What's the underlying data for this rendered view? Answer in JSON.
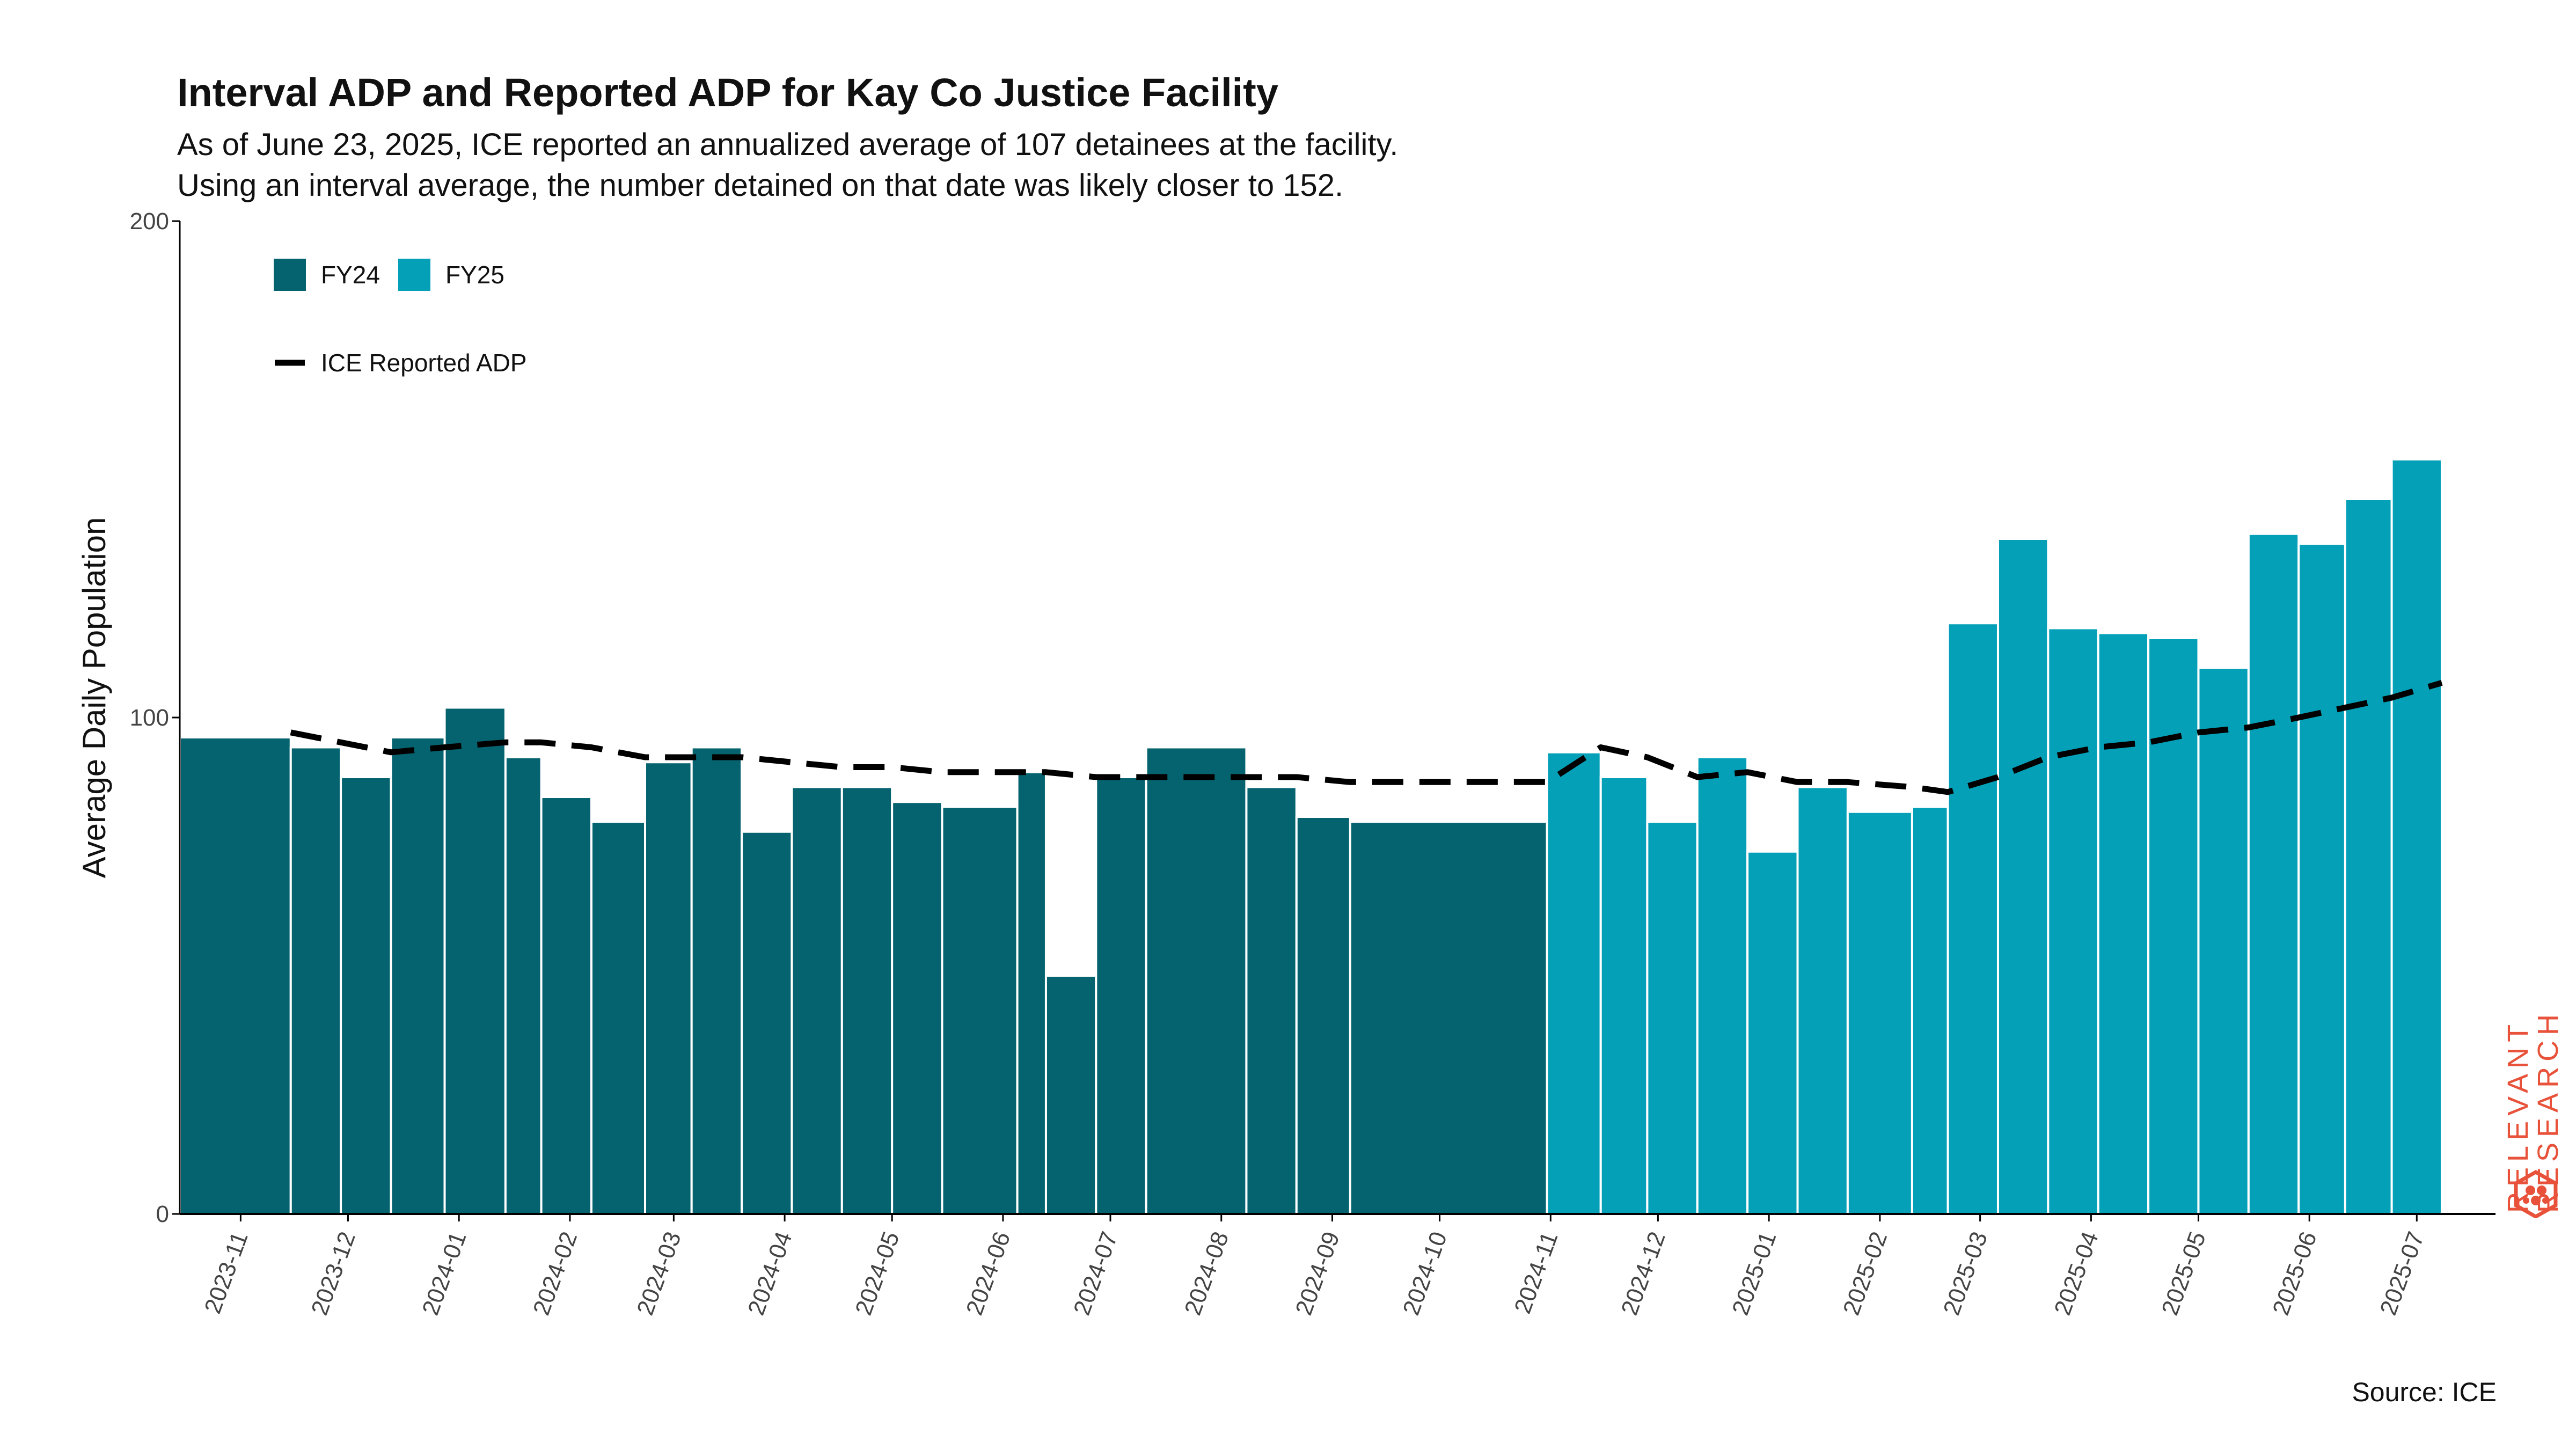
{
  "header": {
    "title": "Interval ADP and Reported ADP for Kay Co Justice Facility",
    "subtitle_line1": "As of June 23, 2025, ICE reported an annualized average of 107 detainees at the facility.",
    "subtitle_line2": "Using an interval average, the number detained on that date was likely closer to 152."
  },
  "footer": {
    "source": "Source: ICE"
  },
  "logo": {
    "line1": "RELEVANT",
    "line2": "RESEARCH",
    "icon": "hexagon-molecule-icon",
    "color": "#e8523a"
  },
  "colors": {
    "fy24": "#04636f",
    "fy25": "#03a0b7",
    "line": "#000000",
    "axis": "#000000",
    "tick_label": "#444444"
  },
  "chart_data": {
    "type": "bar",
    "ylabel": "Average Daily Population",
    "xlabel": "",
    "ylim": [
      0,
      200
    ],
    "yticks": [
      0,
      100,
      200
    ],
    "xlim": [
      "2023-10-15",
      "2025-07-23"
    ],
    "xticks": [
      "2023-11",
      "2023-12",
      "2024-01",
      "2024-02",
      "2024-03",
      "2024-04",
      "2024-05",
      "2024-06",
      "2024-07",
      "2024-08",
      "2024-09",
      "2024-10",
      "2024-11",
      "2024-12",
      "2025-01",
      "2025-02",
      "2025-03",
      "2025-04",
      "2025-05",
      "2025-06",
      "2025-07"
    ],
    "legend": {
      "position": "top-left",
      "entries": [
        {
          "label": "FY24",
          "kind": "bar",
          "series": "FY24"
        },
        {
          "label": "FY25",
          "kind": "bar",
          "series": "FY25"
        },
        {
          "label": "ICE Reported ADP",
          "kind": "dashed-line"
        }
      ]
    },
    "bars": [
      {
        "start": "2023-10-15",
        "end": "2023-11-15",
        "value": 96,
        "fy": "FY24"
      },
      {
        "start": "2023-11-15",
        "end": "2023-11-29",
        "value": 94,
        "fy": "FY24"
      },
      {
        "start": "2023-11-29",
        "end": "2023-12-13",
        "value": 88,
        "fy": "FY24"
      },
      {
        "start": "2023-12-13",
        "end": "2023-12-28",
        "value": 96,
        "fy": "FY24"
      },
      {
        "start": "2023-12-28",
        "end": "2024-01-14",
        "value": 102,
        "fy": "FY24"
      },
      {
        "start": "2024-01-14",
        "end": "2024-01-24",
        "value": 92,
        "fy": "FY24"
      },
      {
        "start": "2024-01-24",
        "end": "2024-02-07",
        "value": 84,
        "fy": "FY24"
      },
      {
        "start": "2024-02-07",
        "end": "2024-02-22",
        "value": 79,
        "fy": "FY24"
      },
      {
        "start": "2024-02-22",
        "end": "2024-03-06",
        "value": 91,
        "fy": "FY24"
      },
      {
        "start": "2024-03-06",
        "end": "2024-03-20",
        "value": 94,
        "fy": "FY24"
      },
      {
        "start": "2024-03-20",
        "end": "2024-04-03",
        "value": 77,
        "fy": "FY24"
      },
      {
        "start": "2024-04-03",
        "end": "2024-04-17",
        "value": 86,
        "fy": "FY24"
      },
      {
        "start": "2024-04-17",
        "end": "2024-05-01",
        "value": 86,
        "fy": "FY24"
      },
      {
        "start": "2024-05-01",
        "end": "2024-05-15",
        "value": 83,
        "fy": "FY24"
      },
      {
        "start": "2024-05-15",
        "end": "2024-06-05",
        "value": 82,
        "fy": "FY24"
      },
      {
        "start": "2024-06-05",
        "end": "2024-06-13",
        "value": 89,
        "fy": "FY24"
      },
      {
        "start": "2024-06-13",
        "end": "2024-06-27",
        "value": 48,
        "fy": "FY24"
      },
      {
        "start": "2024-06-27",
        "end": "2024-07-11",
        "value": 88,
        "fy": "FY24"
      },
      {
        "start": "2024-07-11",
        "end": "2024-08-08",
        "value": 94,
        "fy": "FY24"
      },
      {
        "start": "2024-08-08",
        "end": "2024-08-22",
        "value": 86,
        "fy": "FY24"
      },
      {
        "start": "2024-08-22",
        "end": "2024-09-06",
        "value": 80,
        "fy": "FY24"
      },
      {
        "start": "2024-09-06",
        "end": "2024-10-31",
        "value": 79,
        "fy": "FY24"
      },
      {
        "start": "2024-10-31",
        "end": "2024-11-15",
        "value": 93,
        "fy": "FY25"
      },
      {
        "start": "2024-11-15",
        "end": "2024-11-28",
        "value": 88,
        "fy": "FY25"
      },
      {
        "start": "2024-11-28",
        "end": "2024-12-12",
        "value": 79,
        "fy": "FY25"
      },
      {
        "start": "2024-12-12",
        "end": "2024-12-26",
        "value": 92,
        "fy": "FY25"
      },
      {
        "start": "2024-12-26",
        "end": "2025-01-09",
        "value": 73,
        "fy": "FY25"
      },
      {
        "start": "2025-01-09",
        "end": "2025-01-23",
        "value": 86,
        "fy": "FY25"
      },
      {
        "start": "2025-01-23",
        "end": "2025-02-10",
        "value": 81,
        "fy": "FY25"
      },
      {
        "start": "2025-02-10",
        "end": "2025-02-20",
        "value": 82,
        "fy": "FY25"
      },
      {
        "start": "2025-02-20",
        "end": "2025-03-06",
        "value": 119,
        "fy": "FY25"
      },
      {
        "start": "2025-03-06",
        "end": "2025-03-20",
        "value": 136,
        "fy": "FY25"
      },
      {
        "start": "2025-03-20",
        "end": "2025-04-03",
        "value": 118,
        "fy": "FY25"
      },
      {
        "start": "2025-04-03",
        "end": "2025-04-17",
        "value": 117,
        "fy": "FY25"
      },
      {
        "start": "2025-04-17",
        "end": "2025-05-01",
        "value": 116,
        "fy": "FY25"
      },
      {
        "start": "2025-05-01",
        "end": "2025-05-15",
        "value": 110,
        "fy": "FY25"
      },
      {
        "start": "2025-05-15",
        "end": "2025-05-29",
        "value": 137,
        "fy": "FY25"
      },
      {
        "start": "2025-05-29",
        "end": "2025-06-11",
        "value": 135,
        "fy": "FY25"
      },
      {
        "start": "2025-06-11",
        "end": "2025-06-24",
        "value": 144,
        "fy": "FY25"
      },
      {
        "start": "2025-06-24",
        "end": "2025-07-08",
        "value": 152,
        "fy": "FY25"
      }
    ],
    "series": [
      {
        "name": "ICE Reported ADP",
        "style": "dashed",
        "points": [
          {
            "x": "2023-11-15",
            "y": 97
          },
          {
            "x": "2023-11-29",
            "y": 95
          },
          {
            "x": "2023-12-13",
            "y": 93
          },
          {
            "x": "2023-12-28",
            "y": 94
          },
          {
            "x": "2024-01-14",
            "y": 95
          },
          {
            "x": "2024-01-24",
            "y": 95
          },
          {
            "x": "2024-02-07",
            "y": 94
          },
          {
            "x": "2024-02-22",
            "y": 92
          },
          {
            "x": "2024-03-06",
            "y": 92
          },
          {
            "x": "2024-03-20",
            "y": 92
          },
          {
            "x": "2024-04-03",
            "y": 91
          },
          {
            "x": "2024-04-17",
            "y": 90
          },
          {
            "x": "2024-05-01",
            "y": 90
          },
          {
            "x": "2024-05-15",
            "y": 89
          },
          {
            "x": "2024-06-05",
            "y": 89
          },
          {
            "x": "2024-06-13",
            "y": 89
          },
          {
            "x": "2024-06-27",
            "y": 88
          },
          {
            "x": "2024-07-11",
            "y": 88
          },
          {
            "x": "2024-08-08",
            "y": 88
          },
          {
            "x": "2024-08-22",
            "y": 88
          },
          {
            "x": "2024-09-06",
            "y": 87
          },
          {
            "x": "2024-10-31",
            "y": 87
          },
          {
            "x": "2024-11-15",
            "y": 94
          },
          {
            "x": "2024-11-28",
            "y": 92
          },
          {
            "x": "2024-12-12",
            "y": 88
          },
          {
            "x": "2024-12-26",
            "y": 89
          },
          {
            "x": "2025-01-09",
            "y": 87
          },
          {
            "x": "2025-01-23",
            "y": 87
          },
          {
            "x": "2025-02-10",
            "y": 86
          },
          {
            "x": "2025-02-20",
            "y": 85
          },
          {
            "x": "2025-03-06",
            "y": 88
          },
          {
            "x": "2025-03-20",
            "y": 92
          },
          {
            "x": "2025-04-03",
            "y": 94
          },
          {
            "x": "2025-04-17",
            "y": 95
          },
          {
            "x": "2025-05-01",
            "y": 97
          },
          {
            "x": "2025-05-15",
            "y": 98
          },
          {
            "x": "2025-05-29",
            "y": 100
          },
          {
            "x": "2025-06-11",
            "y": 102
          },
          {
            "x": "2025-06-24",
            "y": 104
          },
          {
            "x": "2025-07-08",
            "y": 107
          }
        ]
      }
    ]
  }
}
